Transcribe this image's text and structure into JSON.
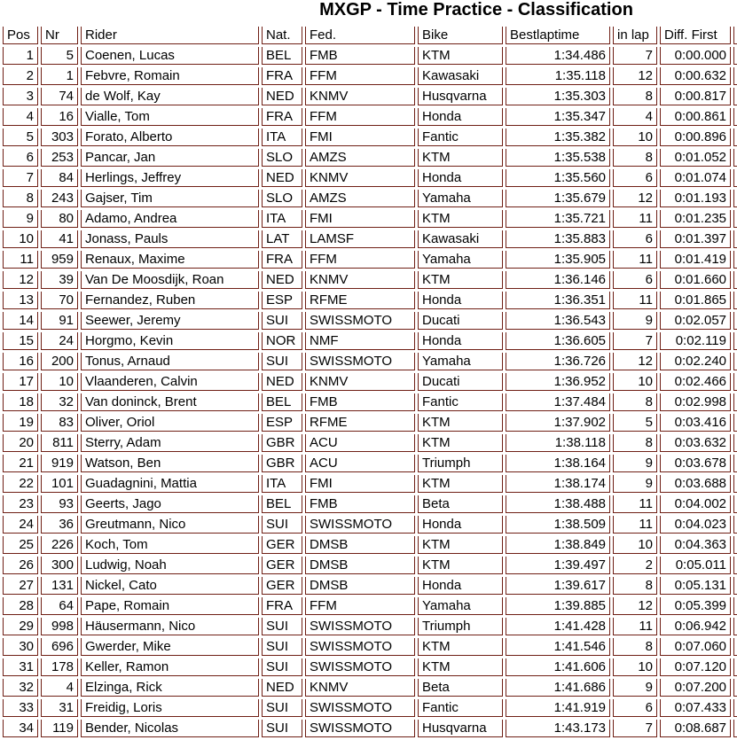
{
  "title": "MXGP - Time Practice - Classification",
  "colors": {
    "border": "#6f1f15",
    "text": "#000000",
    "background": "#ffffff"
  },
  "table": {
    "columns": [
      {
        "key": "pos",
        "label": "Pos"
      },
      {
        "key": "nr",
        "label": "Nr"
      },
      {
        "key": "rider",
        "label": "Rider"
      },
      {
        "key": "nat",
        "label": "Nat."
      },
      {
        "key": "fed",
        "label": "Fed."
      },
      {
        "key": "bike",
        "label": "Bike"
      },
      {
        "key": "bestlaptime",
        "label": "Bestlaptime"
      },
      {
        "key": "in_lap",
        "label": "in lap"
      },
      {
        "key": "diff_first",
        "label": "Diff. First"
      },
      {
        "key": "next_partial",
        "label": ""
      }
    ],
    "rows": [
      {
        "pos": "1",
        "nr": "5",
        "rider": "Coenen, Lucas",
        "nat": "BEL",
        "fed": "FMB",
        "bike": "KTM",
        "bestlaptime": "1:34.486",
        "in_lap": "7",
        "diff_first": "0:00.000",
        "next_partial": ""
      },
      {
        "pos": "2",
        "nr": "1",
        "rider": "Febvre, Romain",
        "nat": "FRA",
        "fed": "FFM",
        "bike": "Kawasaki",
        "bestlaptime": "1:35.118",
        "in_lap": "12",
        "diff_first": "0:00.632",
        "next_partial": ""
      },
      {
        "pos": "3",
        "nr": "74",
        "rider": "de Wolf, Kay",
        "nat": "NED",
        "fed": "KNMV",
        "bike": "Husqvarna",
        "bestlaptime": "1:35.303",
        "in_lap": "8",
        "diff_first": "0:00.817",
        "next_partial": ""
      },
      {
        "pos": "4",
        "nr": "16",
        "rider": "Vialle, Tom",
        "nat": "FRA",
        "fed": "FFM",
        "bike": "Honda",
        "bestlaptime": "1:35.347",
        "in_lap": "4",
        "diff_first": "0:00.861",
        "next_partial": ""
      },
      {
        "pos": "5",
        "nr": "303",
        "rider": "Forato, Alberto",
        "nat": "ITA",
        "fed": "FMI",
        "bike": "Fantic",
        "bestlaptime": "1:35.382",
        "in_lap": "10",
        "diff_first": "0:00.896",
        "next_partial": ""
      },
      {
        "pos": "6",
        "nr": "253",
        "rider": "Pancar, Jan",
        "nat": "SLO",
        "fed": "AMZS",
        "bike": "KTM",
        "bestlaptime": "1:35.538",
        "in_lap": "8",
        "diff_first": "0:01.052",
        "next_partial": ""
      },
      {
        "pos": "7",
        "nr": "84",
        "rider": "Herlings, Jeffrey",
        "nat": "NED",
        "fed": "KNMV",
        "bike": "Honda",
        "bestlaptime": "1:35.560",
        "in_lap": "6",
        "diff_first": "0:01.074",
        "next_partial": ""
      },
      {
        "pos": "8",
        "nr": "243",
        "rider": "Gajser, Tim",
        "nat": "SLO",
        "fed": "AMZS",
        "bike": "Yamaha",
        "bestlaptime": "1:35.679",
        "in_lap": "12",
        "diff_first": "0:01.193",
        "next_partial": ""
      },
      {
        "pos": "9",
        "nr": "80",
        "rider": "Adamo, Andrea",
        "nat": "ITA",
        "fed": "FMI",
        "bike": "KTM",
        "bestlaptime": "1:35.721",
        "in_lap": "11",
        "diff_first": "0:01.235",
        "next_partial": ""
      },
      {
        "pos": "10",
        "nr": "41",
        "rider": "Jonass, Pauls",
        "nat": "LAT",
        "fed": "LAMSF",
        "bike": "Kawasaki",
        "bestlaptime": "1:35.883",
        "in_lap": "6",
        "diff_first": "0:01.397",
        "next_partial": ""
      },
      {
        "pos": "11",
        "nr": "959",
        "rider": "Renaux, Maxime",
        "nat": "FRA",
        "fed": "FFM",
        "bike": "Yamaha",
        "bestlaptime": "1:35.905",
        "in_lap": "11",
        "diff_first": "0:01.419",
        "next_partial": ""
      },
      {
        "pos": "12",
        "nr": "39",
        "rider": "Van De Moosdijk, Roan",
        "nat": "NED",
        "fed": "KNMV",
        "bike": "KTM",
        "bestlaptime": "1:36.146",
        "in_lap": "6",
        "diff_first": "0:01.660",
        "next_partial": ""
      },
      {
        "pos": "13",
        "nr": "70",
        "rider": "Fernandez, Ruben",
        "nat": "ESP",
        "fed": "RFME",
        "bike": "Honda",
        "bestlaptime": "1:36.351",
        "in_lap": "11",
        "diff_first": "0:01.865",
        "next_partial": ""
      },
      {
        "pos": "14",
        "nr": "91",
        "rider": "Seewer, Jeremy",
        "nat": "SUI",
        "fed": "SWISSMOTO",
        "bike": "Ducati",
        "bestlaptime": "1:36.543",
        "in_lap": "9",
        "diff_first": "0:02.057",
        "next_partial": ""
      },
      {
        "pos": "15",
        "nr": "24",
        "rider": "Horgmo, Kevin",
        "nat": "NOR",
        "fed": "NMF",
        "bike": "Honda",
        "bestlaptime": "1:36.605",
        "in_lap": "7",
        "diff_first": "0:02.119",
        "next_partial": ""
      },
      {
        "pos": "16",
        "nr": "200",
        "rider": "Tonus, Arnaud",
        "nat": "SUI",
        "fed": "SWISSMOTO",
        "bike": "Yamaha",
        "bestlaptime": "1:36.726",
        "in_lap": "12",
        "diff_first": "0:02.240",
        "next_partial": ""
      },
      {
        "pos": "17",
        "nr": "10",
        "rider": "Vlaanderen, Calvin",
        "nat": "NED",
        "fed": "KNMV",
        "bike": "Ducati",
        "bestlaptime": "1:36.952",
        "in_lap": "10",
        "diff_first": "0:02.466",
        "next_partial": ""
      },
      {
        "pos": "18",
        "nr": "32",
        "rider": "Van doninck, Brent",
        "nat": "BEL",
        "fed": "FMB",
        "bike": "Fantic",
        "bestlaptime": "1:37.484",
        "in_lap": "8",
        "diff_first": "0:02.998",
        "next_partial": ""
      },
      {
        "pos": "19",
        "nr": "83",
        "rider": "Oliver, Oriol",
        "nat": "ESP",
        "fed": "RFME",
        "bike": "KTM",
        "bestlaptime": "1:37.902",
        "in_lap": "5",
        "diff_first": "0:03.416",
        "next_partial": ""
      },
      {
        "pos": "20",
        "nr": "811",
        "rider": "Sterry, Adam",
        "nat": "GBR",
        "fed": "ACU",
        "bike": "KTM",
        "bestlaptime": "1:38.118",
        "in_lap": "8",
        "diff_first": "0:03.632",
        "next_partial": ""
      },
      {
        "pos": "21",
        "nr": "919",
        "rider": "Watson, Ben",
        "nat": "GBR",
        "fed": "ACU",
        "bike": "Triumph",
        "bestlaptime": "1:38.164",
        "in_lap": "9",
        "diff_first": "0:03.678",
        "next_partial": ""
      },
      {
        "pos": "22",
        "nr": "101",
        "rider": "Guadagnini, Mattia",
        "nat": "ITA",
        "fed": "FMI",
        "bike": "KTM",
        "bestlaptime": "1:38.174",
        "in_lap": "9",
        "diff_first": "0:03.688",
        "next_partial": ""
      },
      {
        "pos": "23",
        "nr": "93",
        "rider": "Geerts, Jago",
        "nat": "BEL",
        "fed": "FMB",
        "bike": "Beta",
        "bestlaptime": "1:38.488",
        "in_lap": "11",
        "diff_first": "0:04.002",
        "next_partial": ""
      },
      {
        "pos": "24",
        "nr": "36",
        "rider": "Greutmann, Nico",
        "nat": "SUI",
        "fed": "SWISSMOTO",
        "bike": "Honda",
        "bestlaptime": "1:38.509",
        "in_lap": "11",
        "diff_first": "0:04.023",
        "next_partial": ""
      },
      {
        "pos": "25",
        "nr": "226",
        "rider": "Koch, Tom",
        "nat": "GER",
        "fed": "DMSB",
        "bike": "KTM",
        "bestlaptime": "1:38.849",
        "in_lap": "10",
        "diff_first": "0:04.363",
        "next_partial": ""
      },
      {
        "pos": "26",
        "nr": "300",
        "rider": "Ludwig, Noah",
        "nat": "GER",
        "fed": "DMSB",
        "bike": "KTM",
        "bestlaptime": "1:39.497",
        "in_lap": "2",
        "diff_first": "0:05.011",
        "next_partial": ""
      },
      {
        "pos": "27",
        "nr": "131",
        "rider": "Nickel, Cato",
        "nat": "GER",
        "fed": "DMSB",
        "bike": "Honda",
        "bestlaptime": "1:39.617",
        "in_lap": "8",
        "diff_first": "0:05.131",
        "next_partial": ""
      },
      {
        "pos": "28",
        "nr": "64",
        "rider": "Pape, Romain",
        "nat": "FRA",
        "fed": "FFM",
        "bike": "Yamaha",
        "bestlaptime": "1:39.885",
        "in_lap": "12",
        "diff_first": "0:05.399",
        "next_partial": ""
      },
      {
        "pos": "29",
        "nr": "998",
        "rider": "Häusermann, Nico",
        "nat": "SUI",
        "fed": "SWISSMOTO",
        "bike": "Triumph",
        "bestlaptime": "1:41.428",
        "in_lap": "11",
        "diff_first": "0:06.942",
        "next_partial": ""
      },
      {
        "pos": "30",
        "nr": "696",
        "rider": "Gwerder, Mike",
        "nat": "SUI",
        "fed": "SWISSMOTO",
        "bike": "KTM",
        "bestlaptime": "1:41.546",
        "in_lap": "8",
        "diff_first": "0:07.060",
        "next_partial": ""
      },
      {
        "pos": "31",
        "nr": "178",
        "rider": "Keller, Ramon",
        "nat": "SUI",
        "fed": "SWISSMOTO",
        "bike": "KTM",
        "bestlaptime": "1:41.606",
        "in_lap": "10",
        "diff_first": "0:07.120",
        "next_partial": ""
      },
      {
        "pos": "32",
        "nr": "4",
        "rider": "Elzinga, Rick",
        "nat": "NED",
        "fed": "KNMV",
        "bike": "Beta",
        "bestlaptime": "1:41.686",
        "in_lap": "9",
        "diff_first": "0:07.200",
        "next_partial": ""
      },
      {
        "pos": "33",
        "nr": "31",
        "rider": "Freidig, Loris",
        "nat": "SUI",
        "fed": "SWISSMOTO",
        "bike": "Fantic",
        "bestlaptime": "1:41.919",
        "in_lap": "6",
        "diff_first": "0:07.433",
        "next_partial": ""
      },
      {
        "pos": "34",
        "nr": "119",
        "rider": "Bender, Nicolas",
        "nat": "SUI",
        "fed": "SWISSMOTO",
        "bike": "Husqvarna",
        "bestlaptime": "1:43.173",
        "in_lap": "7",
        "diff_first": "0:08.687",
        "next_partial": ""
      }
    ]
  }
}
